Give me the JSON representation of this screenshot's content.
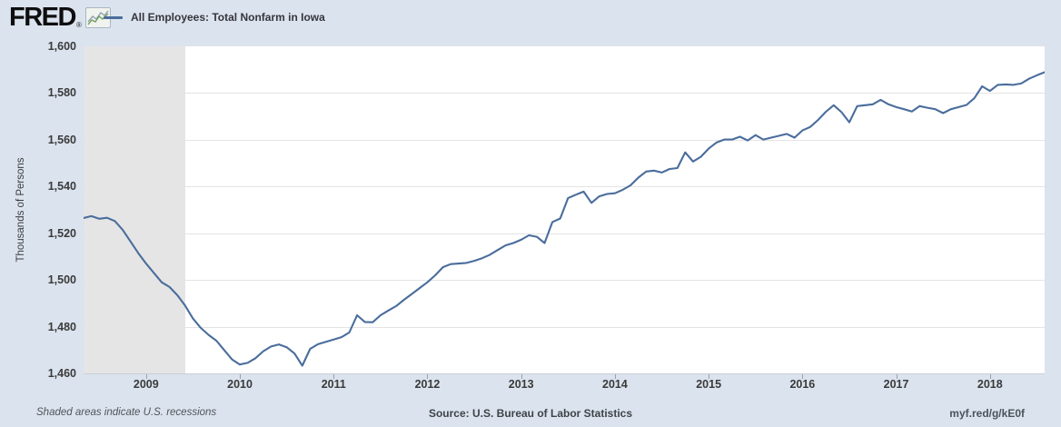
{
  "header": {
    "logo_text": "FRED",
    "registered_mark": "®",
    "logo_icon": "sparkline-chart-icon",
    "legend": {
      "series_label": "All Employees: Total Nonfarm in Iowa",
      "series_color": "#4a6d9c"
    }
  },
  "y_axis": {
    "title": "Thousands of Persons",
    "tick_labels": [
      "1,600",
      "1,580",
      "1,560",
      "1,540",
      "1,520",
      "1,500",
      "1,480",
      "1,460"
    ],
    "min": 1460,
    "max": 1600
  },
  "x_axis": {
    "tick_labels": [
      "2009",
      "2010",
      "2011",
      "2012",
      "2013",
      "2014",
      "2015",
      "2016",
      "2017",
      "2018"
    ]
  },
  "footer": {
    "note": "Shaded areas indicate U.S. recessions",
    "source": "Source: U.S. Bureau of Labor Statistics",
    "shortlink": "myf.red/g/kE0f"
  },
  "colors": {
    "page_bg": "#dbe3ee",
    "plot_bg": "#ffffff",
    "line": "#4a6d9c",
    "gridline": "#e4e4e4",
    "recession_band": "#e5e5e5",
    "icon_green": "#6f9e5f",
    "icon_gray": "#93a1ad"
  },
  "chart_data": {
    "type": "line",
    "title": "All Employees: Total Nonfarm in Iowa",
    "ylabel": "Thousands of Persons",
    "ylim": [
      1460,
      1600
    ],
    "grid": "horizontal-only",
    "legend_position": "top-left",
    "frequency": "monthly",
    "recession": {
      "start": "2008-05",
      "end": "2009-06"
    },
    "dates": [
      "2008-05",
      "2008-06",
      "2008-07",
      "2008-08",
      "2008-09",
      "2008-10",
      "2008-11",
      "2008-12",
      "2009-01",
      "2009-02",
      "2009-03",
      "2009-04",
      "2009-05",
      "2009-06",
      "2009-07",
      "2009-08",
      "2009-09",
      "2009-10",
      "2009-11",
      "2009-12",
      "2010-01",
      "2010-02",
      "2010-03",
      "2010-04",
      "2010-05",
      "2010-06",
      "2010-07",
      "2010-08",
      "2010-09",
      "2010-10",
      "2010-11",
      "2010-12",
      "2011-01",
      "2011-02",
      "2011-03",
      "2011-04",
      "2011-05",
      "2011-06",
      "2011-07",
      "2011-08",
      "2011-09",
      "2011-10",
      "2011-11",
      "2011-12",
      "2012-01",
      "2012-02",
      "2012-03",
      "2012-04",
      "2012-05",
      "2012-06",
      "2012-07",
      "2012-08",
      "2012-09",
      "2012-10",
      "2012-11",
      "2012-12",
      "2013-01",
      "2013-02",
      "2013-03",
      "2013-04",
      "2013-05",
      "2013-06",
      "2013-07",
      "2013-08",
      "2013-09",
      "2013-10",
      "2013-11",
      "2013-12",
      "2014-01",
      "2014-02",
      "2014-03",
      "2014-04",
      "2014-05",
      "2014-06",
      "2014-07",
      "2014-08",
      "2014-09",
      "2014-10",
      "2014-11",
      "2014-12",
      "2015-01",
      "2015-02",
      "2015-03",
      "2015-04",
      "2015-05",
      "2015-06",
      "2015-07",
      "2015-08",
      "2015-09",
      "2015-10",
      "2015-11",
      "2015-12",
      "2016-01",
      "2016-02",
      "2016-03",
      "2016-04",
      "2016-05",
      "2016-06",
      "2016-07",
      "2016-08",
      "2016-09",
      "2016-10",
      "2016-11",
      "2016-12",
      "2017-01",
      "2017-02",
      "2017-03",
      "2017-04",
      "2017-05",
      "2017-06",
      "2017-07",
      "2017-08",
      "2017-09",
      "2017-10",
      "2017-11",
      "2017-12",
      "2018-01",
      "2018-02",
      "2018-03",
      "2018-04",
      "2018-05",
      "2018-06",
      "2018-07",
      "2018-08"
    ],
    "values": [
      1526.5,
      1527.3,
      1526.2,
      1526.6,
      1525.2,
      1521.5,
      1516.5,
      1511.5,
      1507.0,
      1503.0,
      1499.0,
      1497.0,
      1493.5,
      1489.0,
      1483.5,
      1479.5,
      1476.5,
      1474.0,
      1470.0,
      1466.0,
      1463.8,
      1464.5,
      1466.5,
      1469.5,
      1471.5,
      1472.4,
      1471.2,
      1468.5,
      1463.3,
      1470.5,
      1472.5,
      1473.5,
      1474.5,
      1475.5,
      1477.5,
      1484.9,
      1482.0,
      1481.9,
      1484.9,
      1486.9,
      1488.8,
      1491.5,
      1494.0,
      1496.5,
      1499.0,
      1502.0,
      1505.5,
      1506.8,
      1507.0,
      1507.3,
      1508.2,
      1509.3,
      1510.8,
      1512.8,
      1514.8,
      1515.8,
      1517.2,
      1519.1,
      1518.5,
      1515.8,
      1524.8,
      1526.3,
      1535.0,
      1536.5,
      1537.8,
      1533.0,
      1535.8,
      1536.8,
      1537.1,
      1538.6,
      1540.5,
      1543.8,
      1546.4,
      1546.8,
      1546.0,
      1547.5,
      1547.9,
      1554.6,
      1550.7,
      1552.7,
      1556.2,
      1558.8,
      1560.1,
      1560.1,
      1561.3,
      1559.7,
      1562.0,
      1560.1,
      1560.9,
      1561.7,
      1562.5,
      1560.9,
      1564.0,
      1565.5,
      1568.5,
      1572.0,
      1574.8,
      1571.8,
      1567.5,
      1574.4,
      1574.8,
      1575.2,
      1577.1,
      1575.2,
      1574.0,
      1573.1,
      1572.1,
      1574.4,
      1573.7,
      1573.1,
      1571.4,
      1573.1,
      1574.0,
      1574.9,
      1577.8,
      1582.9,
      1580.9,
      1583.5,
      1583.7,
      1583.5,
      1584.1,
      1586.1,
      1587.6,
      1588.9
    ]
  }
}
